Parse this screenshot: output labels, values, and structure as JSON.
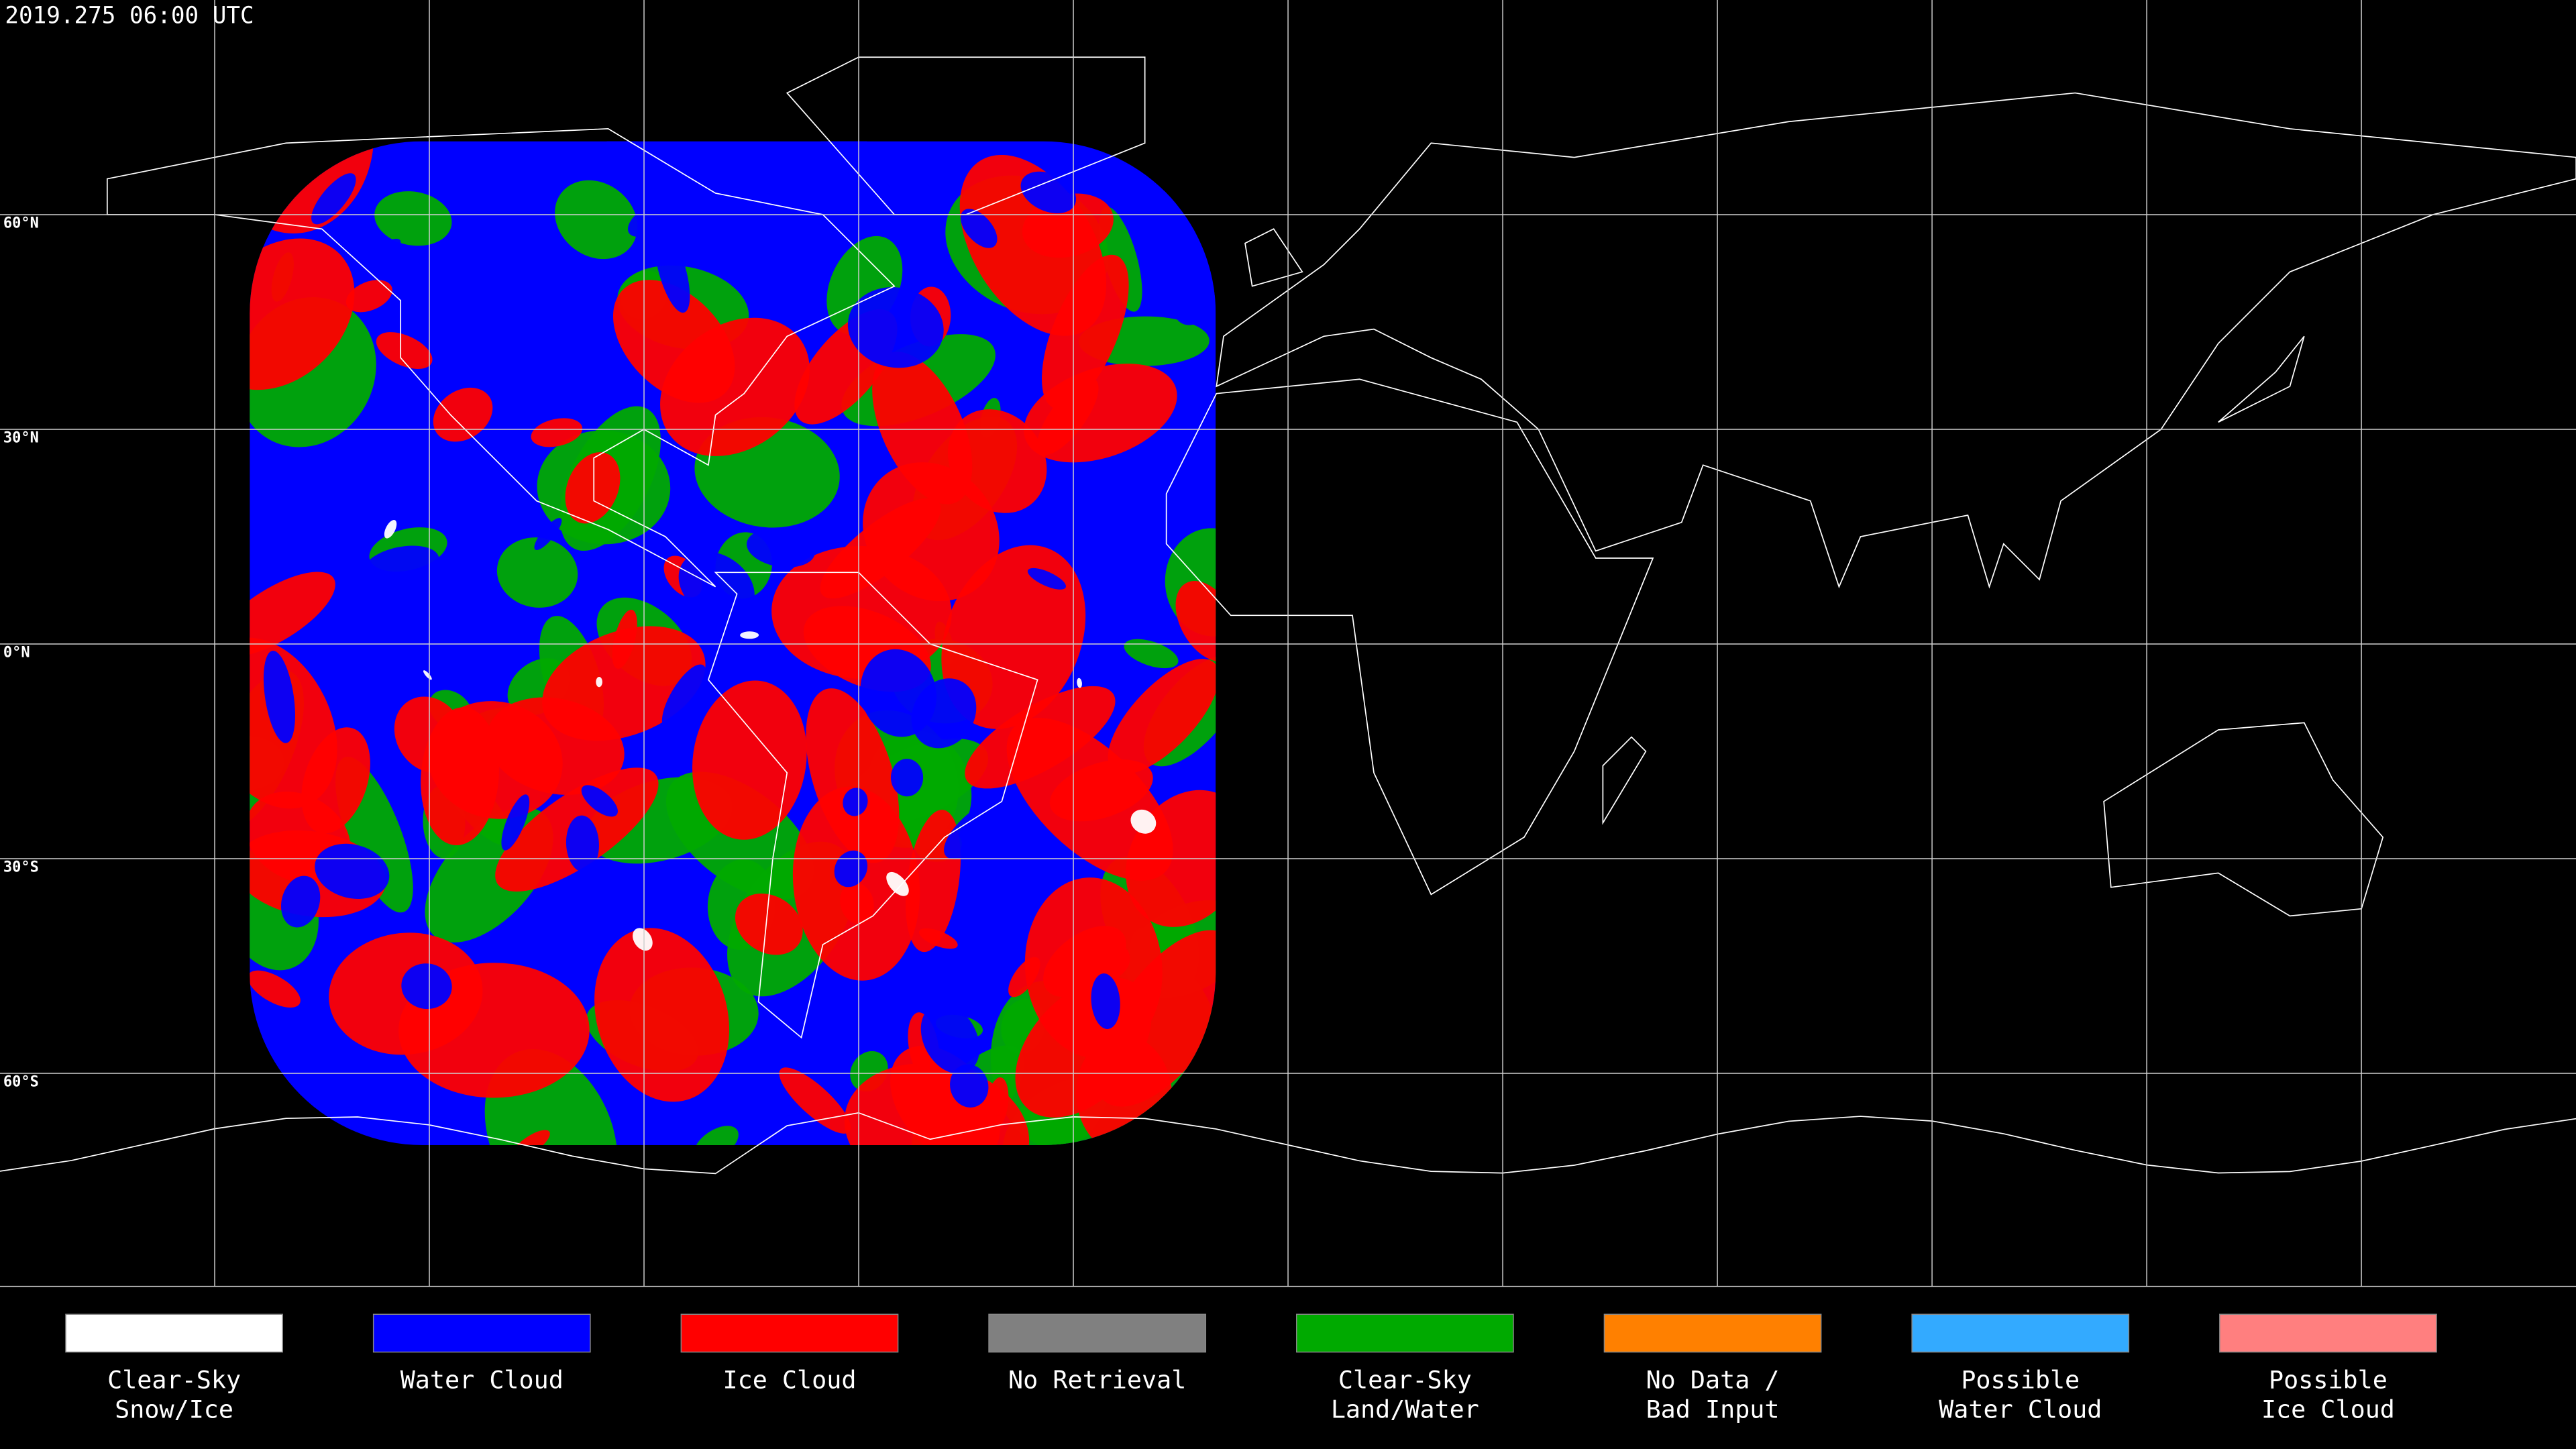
{
  "header": {
    "timestamp": "2019.275 06:00 UTC"
  },
  "grid_labels": [
    "60°N",
    "30°N",
    "0°N",
    "30°S",
    "60°S"
  ],
  "legend": {
    "items": [
      {
        "lines": [
          "Clear-Sky",
          "Snow/Ice"
        ],
        "color": "#ffffff"
      },
      {
        "lines": [
          "Water Cloud"
        ],
        "color": "#0000ff"
      },
      {
        "lines": [
          "Ice Cloud"
        ],
        "color": "#ff0000"
      },
      {
        "lines": [
          "No Retrieval"
        ],
        "color": "#808080"
      },
      {
        "lines": [
          "Clear-Sky",
          "Land/Water"
        ],
        "color": "#00aa00"
      },
      {
        "lines": [
          "No Data /",
          "Bad Input"
        ],
        "color": "#ff8000"
      },
      {
        "lines": [
          "Possible",
          "Water Cloud"
        ],
        "color": "#33aaff"
      },
      {
        "lines": [
          "Possible",
          "Ice Cloud"
        ],
        "color": "#ff7f7f"
      }
    ]
  }
}
